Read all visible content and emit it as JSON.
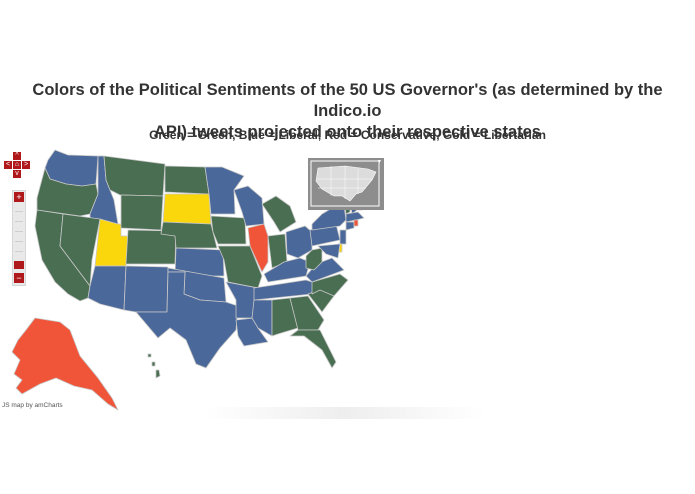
{
  "title_line1": "Colors of the Political Sentiments of the 50 US Governor's (as determined by the Indico.io",
  "title_line2": "API) tweets projected onto their respective states",
  "subtitle": "Green = Green, Blue = Liberal, Red = Conservative, Gold = Libertarian",
  "credit": "JS map by amCharts",
  "colors": {
    "Green": "#4a6e52",
    "Liberal": "#4a6899",
    "Conservative": "#f0553a",
    "Libertarian": "#fad70c",
    "border": "#c8c8c8",
    "control": "#b0191c"
  },
  "controls": {
    "pan_up": "^",
    "pan_left": "<",
    "home": "⌂",
    "pan_right": ">",
    "pan_down": "v",
    "zoom_in": "+",
    "zoom_out": "−"
  },
  "states": [
    {
      "name": "Washington",
      "sentiment": "Liberal"
    },
    {
      "name": "Oregon",
      "sentiment": "Green"
    },
    {
      "name": "California",
      "sentiment": "Green"
    },
    {
      "name": "Idaho",
      "sentiment": "Liberal"
    },
    {
      "name": "Nevada",
      "sentiment": "Green"
    },
    {
      "name": "Utah",
      "sentiment": "Libertarian"
    },
    {
      "name": "Arizona",
      "sentiment": "Liberal"
    },
    {
      "name": "Montana",
      "sentiment": "Green"
    },
    {
      "name": "Wyoming",
      "sentiment": "Green"
    },
    {
      "name": "Colorado",
      "sentiment": "Green"
    },
    {
      "name": "New Mexico",
      "sentiment": "Liberal"
    },
    {
      "name": "North Dakota",
      "sentiment": "Green"
    },
    {
      "name": "South Dakota",
      "sentiment": "Libertarian"
    },
    {
      "name": "Nebraska",
      "sentiment": "Green"
    },
    {
      "name": "Kansas",
      "sentiment": "Liberal"
    },
    {
      "name": "Oklahoma",
      "sentiment": "Liberal"
    },
    {
      "name": "Texas",
      "sentiment": "Liberal"
    },
    {
      "name": "Minnesota",
      "sentiment": "Liberal"
    },
    {
      "name": "Iowa",
      "sentiment": "Green"
    },
    {
      "name": "Missouri",
      "sentiment": "Green"
    },
    {
      "name": "Arkansas",
      "sentiment": "Liberal"
    },
    {
      "name": "Louisiana",
      "sentiment": "Liberal"
    },
    {
      "name": "Wisconsin",
      "sentiment": "Liberal"
    },
    {
      "name": "Illinois",
      "sentiment": "Conservative"
    },
    {
      "name": "Michigan",
      "sentiment": "Green"
    },
    {
      "name": "Indiana",
      "sentiment": "Green"
    },
    {
      "name": "Ohio",
      "sentiment": "Liberal"
    },
    {
      "name": "Kentucky",
      "sentiment": "Liberal"
    },
    {
      "name": "Tennessee",
      "sentiment": "Liberal"
    },
    {
      "name": "Mississippi",
      "sentiment": "Liberal"
    },
    {
      "name": "Alabama",
      "sentiment": "Green"
    },
    {
      "name": "Georgia",
      "sentiment": "Green"
    },
    {
      "name": "Florida",
      "sentiment": "Green"
    },
    {
      "name": "South Carolina",
      "sentiment": "Green"
    },
    {
      "name": "North Carolina",
      "sentiment": "Green"
    },
    {
      "name": "Virginia",
      "sentiment": "Liberal"
    },
    {
      "name": "West Virginia",
      "sentiment": "Green"
    },
    {
      "name": "Pennsylvania",
      "sentiment": "Liberal"
    },
    {
      "name": "New York",
      "sentiment": "Liberal"
    },
    {
      "name": "Vermont",
      "sentiment": "Green"
    },
    {
      "name": "New Hampshire",
      "sentiment": "Liberal"
    },
    {
      "name": "Maine",
      "sentiment": "Green"
    },
    {
      "name": "Massachusetts",
      "sentiment": "Liberal"
    },
    {
      "name": "Connecticut",
      "sentiment": "Liberal"
    },
    {
      "name": "Rhode Island",
      "sentiment": "Conservative"
    },
    {
      "name": "New Jersey",
      "sentiment": "Liberal"
    },
    {
      "name": "Delaware",
      "sentiment": "Libertarian"
    },
    {
      "name": "Maryland",
      "sentiment": "Liberal"
    },
    {
      "name": "Alaska",
      "sentiment": "Conservative"
    },
    {
      "name": "Hawaii",
      "sentiment": "Green"
    }
  ]
}
